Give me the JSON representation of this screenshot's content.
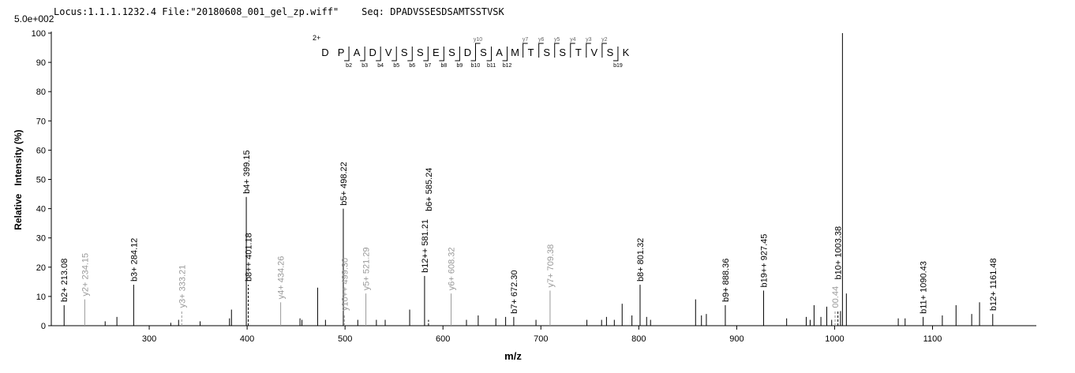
{
  "chart_data": {
    "type": "spectrum",
    "title": "Locus:1.1.1.1232.4 File:\"20180608_001_gel_zp.wiff\"    Seq: DPADVSSESDSAMTSSTVSK",
    "scale_label": "5.0e+002",
    "x_label": "m/z",
    "y_label": "Relative   Intensity (%)",
    "xlim": [
      200,
      1206
    ],
    "xticks": [
      300,
      400,
      500,
      600,
      700,
      800,
      900,
      1000,
      1100
    ],
    "ylim": [
      0,
      100
    ],
    "yticks": [
      0,
      10,
      20,
      30,
      40,
      50,
      60,
      70,
      80,
      90,
      100
    ],
    "color": "#000000",
    "peptide": {
      "charge": "2+",
      "residues": [
        "D",
        "P",
        "A",
        "D",
        "V",
        "S",
        "S",
        "E",
        "S",
        "D",
        "S",
        "A",
        "M",
        "T",
        "S",
        "S",
        "T",
        "V",
        "S",
        "K"
      ],
      "y_ions": [
        "y10",
        "y7",
        "y6",
        "y5",
        "y4",
        "y3",
        "y2"
      ],
      "b_ions": [
        "b2",
        "b3",
        "b4",
        "b5",
        "b6",
        "b7",
        "b8",
        "b9",
        "b10",
        "b11",
        "b12",
        "b19"
      ]
    },
    "peaks": [
      {
        "x": 213.08,
        "value": 7,
        "label": "b2+ 213.08",
        "color": "#000000"
      },
      {
        "x": 234.15,
        "value": 9,
        "label": "y2+ 234.15",
        "color": "#999999"
      },
      {
        "x": 255,
        "value": 1.5
      },
      {
        "x": 267,
        "value": 3
      },
      {
        "x": 284.12,
        "value": 14,
        "label": "b3+ 284.12",
        "color": "#000000"
      },
      {
        "x": 322,
        "value": 1
      },
      {
        "x": 330,
        "value": 2
      },
      {
        "x": 333.21,
        "value": 5,
        "label": "y3+ 333.21",
        "color": "#999999"
      },
      {
        "x": 352,
        "value": 1.5
      },
      {
        "x": 382,
        "value": 2.5
      },
      {
        "x": 384,
        "value": 5.5
      },
      {
        "x": 399.15,
        "value": 44,
        "label": "b4+ 399.15",
        "color": "#000000"
      },
      {
        "x": 401.18,
        "value": 14,
        "label": "b8++ 401.18",
        "color": "#000000"
      },
      {
        "x": 434.26,
        "value": 8,
        "label": "y4+ 434.26",
        "color": "#999999"
      },
      {
        "x": 454,
        "value": 2.5
      },
      {
        "x": 456,
        "value": 2
      },
      {
        "x": 472,
        "value": 13
      },
      {
        "x": 480,
        "value": 2
      },
      {
        "x": 498.22,
        "value": 40,
        "label": "b5+ 498.22",
        "color": "#000000"
      },
      {
        "x": 499.3,
        "value": 4,
        "label": "y10++ 499.30",
        "color": "#999999"
      },
      {
        "x": 513,
        "value": 2
      },
      {
        "x": 521.29,
        "value": 11,
        "label": "y5+ 521.29",
        "color": "#999999"
      },
      {
        "x": 532,
        "value": 2
      },
      {
        "x": 541,
        "value": 2
      },
      {
        "x": 566,
        "value": 5.5
      },
      {
        "x": 581.21,
        "value": 17,
        "label": "b12++ 581.21",
        "color": "#000000"
      },
      {
        "x": 585.24,
        "value": 2,
        "label": "b6+ 585.24",
        "color": "#000000"
      },
      {
        "x": 608.32,
        "value": 11,
        "label": "y6+ 608.32",
        "color": "#999999"
      },
      {
        "x": 624,
        "value": 2
      },
      {
        "x": 636,
        "value": 3.5
      },
      {
        "x": 654,
        "value": 2.5
      },
      {
        "x": 664,
        "value": 3
      },
      {
        "x": 672.3,
        "value": 3,
        "label": "b7+ 672.30",
        "color": "#000000"
      },
      {
        "x": 695,
        "value": 2
      },
      {
        "x": 709.38,
        "value": 12,
        "label": "y7+ 709.38",
        "color": "#999999"
      },
      {
        "x": 747,
        "value": 2
      },
      {
        "x": 762,
        "value": 2
      },
      {
        "x": 767,
        "value": 3
      },
      {
        "x": 775,
        "value": 2
      },
      {
        "x": 783,
        "value": 7.5
      },
      {
        "x": 793,
        "value": 3.5
      },
      {
        "x": 801.32,
        "value": 14,
        "label": "b8+ 801.32",
        "color": "#000000"
      },
      {
        "x": 808,
        "value": 3
      },
      {
        "x": 812,
        "value": 2
      },
      {
        "x": 858,
        "value": 9
      },
      {
        "x": 864,
        "value": 3.5
      },
      {
        "x": 869,
        "value": 4
      },
      {
        "x": 888.36,
        "value": 7,
        "label": "b9+ 888.36",
        "color": "#000000"
      },
      {
        "x": 927.45,
        "value": 12,
        "label": "b19++ 927.45",
        "color": "#000000"
      },
      {
        "x": 951,
        "value": 2.5
      },
      {
        "x": 971,
        "value": 3
      },
      {
        "x": 975,
        "value": 2
      },
      {
        "x": 979,
        "value": 7
      },
      {
        "x": 986,
        "value": 3
      },
      {
        "x": 992,
        "value": 6.5
      },
      {
        "x": 997,
        "value": 2
      },
      {
        "x": 1000.44,
        "value": 5,
        "label": "00.44",
        "color": "#999999"
      },
      {
        "x": 1003.38,
        "value": 5,
        "label": "b10+ 1003.38",
        "color": "#000000"
      },
      {
        "x": 1006,
        "value": 5
      },
      {
        "x": 1008,
        "value": 100
      },
      {
        "x": 1012,
        "value": 11
      },
      {
        "x": 1065,
        "value": 2.5
      },
      {
        "x": 1072,
        "value": 2.5
      },
      {
        "x": 1090.43,
        "value": 3,
        "label": "b11+ 1090.43",
        "color": "#000000"
      },
      {
        "x": 1110,
        "value": 3.5
      },
      {
        "x": 1124,
        "value": 7
      },
      {
        "x": 1140,
        "value": 4
      },
      {
        "x": 1148,
        "value": 8
      },
      {
        "x": 1161.48,
        "value": 4,
        "label": "b12+ 1161.48",
        "color": "#000000"
      }
    ]
  }
}
